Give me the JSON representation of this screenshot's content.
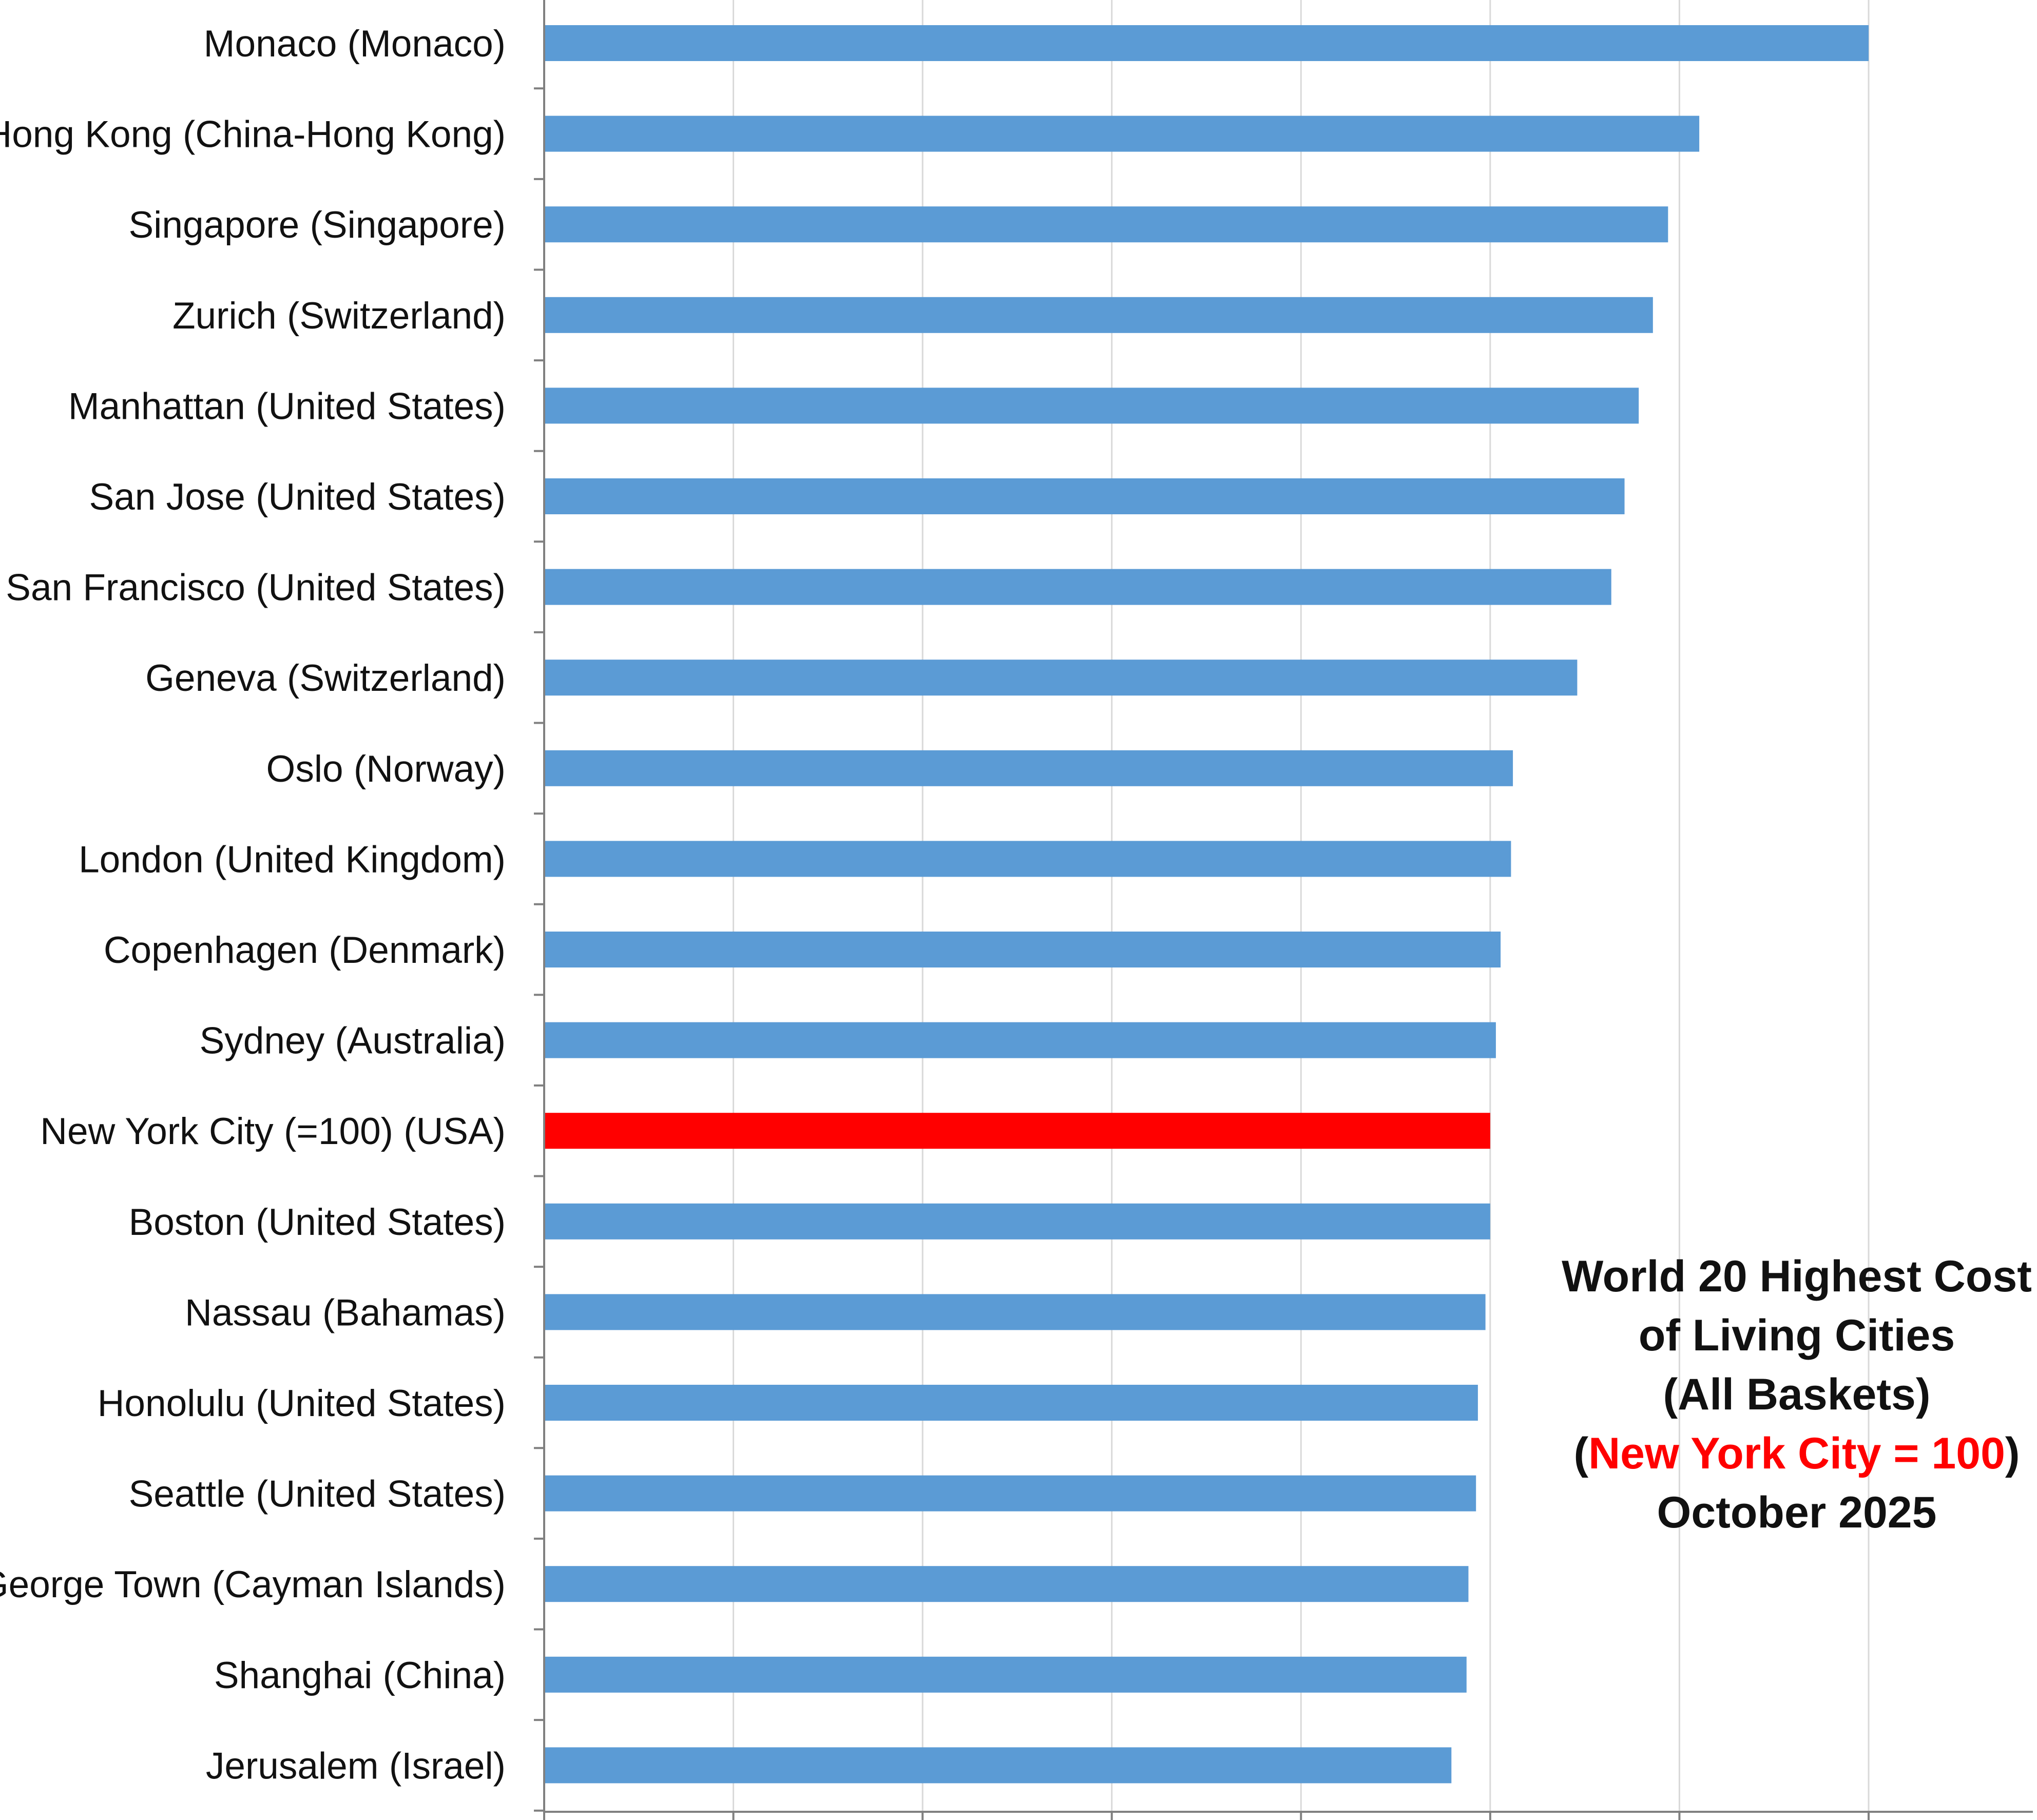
{
  "chart_data": {
    "type": "bar",
    "orientation": "horizontal",
    "categories": [
      "Monaco (Monaco)",
      "Hong Kong (China-Hong Kong)",
      "Singapore (Singapore)",
      "Zurich (Switzerland)",
      "Manhattan (United States)",
      "San Jose (United States)",
      "San Francisco (United States)",
      "Geneva (Switzerland)",
      "Oslo (Norway)",
      "London (United Kingdom)",
      "Copenhagen (Denmark)",
      "Sydney (Australia)",
      "New York City (=100) (USA)",
      "Boston (United States)",
      "Nassau (Bahamas)",
      "Honolulu (United States)",
      "Seattle (United States)",
      "George Town (Cayman Islands)",
      "Shanghai (China)",
      "Jerusalem (Israel)"
    ],
    "values": [
      140.0,
      122.1,
      118.8,
      117.2,
      115.7,
      114.2,
      112.8,
      109.2,
      102.4,
      102.2,
      101.1,
      100.6,
      100.0,
      100.0,
      99.5,
      98.7,
      98.5,
      97.7,
      97.5,
      95.9
    ],
    "highlight_index": 12,
    "colors": {
      "bar": "#5b9bd5",
      "highlight": "#ff0000",
      "grid": "#d9d9d9",
      "axis": "#808080"
    },
    "xlim": [
      0,
      160
    ],
    "x_gridline_step": 20,
    "show_x_tick_labels": false,
    "grid": true,
    "annotation": {
      "line1": "World 20 Highest Cost",
      "line2": "of Living Cities",
      "line3": "(All Baskets)",
      "line4_open": "(",
      "line4_highlight": "New York City = 100",
      "line4_close": ")",
      "line5": "October 2025",
      "highlight_color": "#ff0000"
    }
  }
}
